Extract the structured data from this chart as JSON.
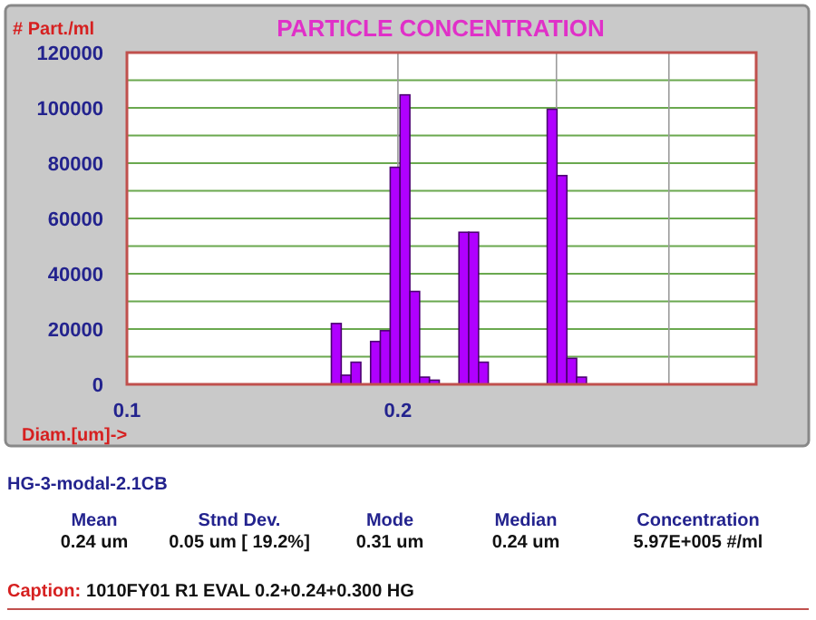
{
  "chart_data": {
    "type": "histogram",
    "title": "PARTICLE CONCENTRATION",
    "ylabel": "# Part./ml",
    "xlabel": "Diam.[um]->",
    "bins": [
      0.1687,
      0.173,
      0.1774,
      0.1819,
      0.1865,
      0.1912,
      0.1961,
      0.2011,
      0.2062,
      0.2114,
      0.2168,
      0.2223,
      0.228,
      0.2338,
      0.2397,
      0.2458,
      0.252,
      0.2584,
      0.265,
      0.2717,
      0.2786,
      0.2857,
      0.293,
      0.3004,
      0.3081,
      0.3159,
      0.3239
    ],
    "values": [
      22000,
      3300,
      8000,
      0,
      15500,
      19400,
      78500,
      104700,
      33600,
      2600,
      1500,
      0,
      0,
      55000,
      55000,
      8000,
      0,
      0,
      0,
      0,
      0,
      0,
      99500,
      75500,
      9400,
      2600
    ],
    "color": "#b000ff",
    "log": "x",
    "xlim": [
      0.1,
      0.5
    ],
    "xticks": [
      0.1,
      0.2,
      {
        "value": 0.3,
        "label": null
      },
      {
        "value": 0.4,
        "label": null
      }
    ],
    "ylim": [
      0,
      120000
    ],
    "yticks": [
      0,
      {
        "value": 10000,
        "label": null
      },
      20000,
      {
        "value": 30000,
        "label": null
      },
      40000,
      {
        "value": 50000,
        "label": null
      },
      60000,
      {
        "value": 70000,
        "label": null
      },
      80000,
      {
        "value": 90000,
        "label": null
      },
      100000,
      {
        "value": 110000,
        "label": null
      },
      120000
    ],
    "grid": true,
    "annotations": [
      "HG-3-modal-2.1CB",
      "Mean",
      "0.24 um",
      "Stnd Dev.",
      "0.05 um [ 19.2%]",
      "Mode",
      "0.31 um",
      "Median",
      "0.24 um",
      "Concentration",
      "5.97E+005 #/ml",
      "Caption:",
      "1010FY01 R1 EVAL  0.2+0.24+0.300  HG"
    ]
  }
}
